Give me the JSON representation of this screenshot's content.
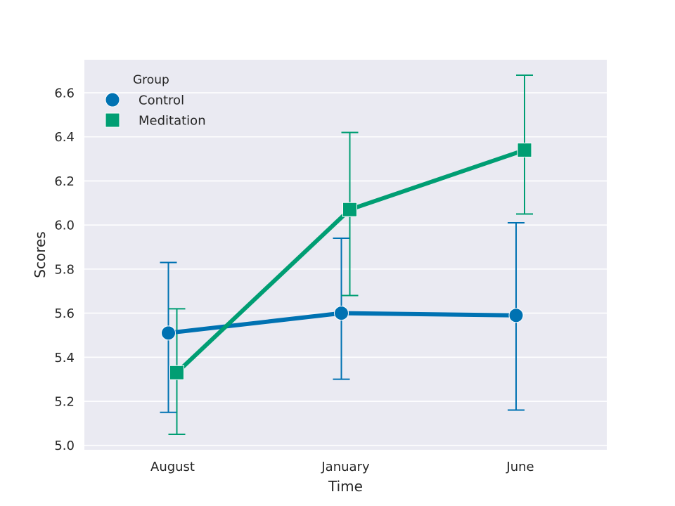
{
  "chart_data": {
    "type": "line",
    "title": "",
    "xlabel": "Time",
    "ylabel": "Scores",
    "categories": [
      "August",
      "January",
      "June"
    ],
    "ylim": [
      4.98,
      6.75
    ],
    "yticks": [
      5.0,
      5.2,
      5.4,
      5.6,
      5.8,
      6.0,
      6.2,
      6.4,
      6.6
    ],
    "ytick_labels": [
      "5.0",
      "5.2",
      "5.4",
      "5.6",
      "5.8",
      "6.0",
      "6.2",
      "6.4",
      "6.6"
    ],
    "grid": true,
    "legend": {
      "title": "Group",
      "placement": "top-left"
    },
    "series": [
      {
        "name": "Control",
        "color": "#0072B2",
        "marker": "circle",
        "values": [
          5.51,
          5.6,
          5.59
        ],
        "ci_low": [
          5.15,
          5.3,
          5.16
        ],
        "ci_high": [
          5.83,
          5.94,
          6.01
        ]
      },
      {
        "name": "Meditation",
        "color": "#009E73",
        "marker": "square",
        "values": [
          5.33,
          6.07,
          6.34
        ],
        "ci_low": [
          5.05,
          5.68,
          6.05
        ],
        "ci_high": [
          5.62,
          6.42,
          6.68
        ]
      }
    ],
    "background_color": "#EAEAF2",
    "grid_color": "#FFFFFF"
  }
}
